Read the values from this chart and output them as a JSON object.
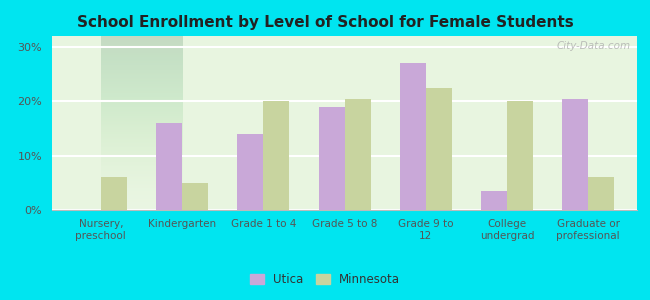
{
  "title": "School Enrollment by Level of School for Female Students",
  "categories": [
    "Nursery,\npreschool",
    "Kindergarten",
    "Grade 1 to 4",
    "Grade 5 to 8",
    "Grade 9 to\n12",
    "College\nundergrad",
    "Graduate or\nprofessional"
  ],
  "utica": [
    0.0,
    16.0,
    14.0,
    19.0,
    27.0,
    3.5,
    20.5
  ],
  "minnesota": [
    6.0,
    5.0,
    20.0,
    20.5,
    22.5,
    20.0,
    6.0
  ],
  "utica_color": "#c9a8d8",
  "minnesota_color": "#c8d49f",
  "background_outer": "#00e5f0",
  "background_inner_top": "#d0eed8",
  "background_inner_bottom": "#f8fff8",
  "yticks": [
    0,
    10,
    20,
    30
  ],
  "ylabels": [
    "0%",
    "10%",
    "20%",
    "30%"
  ],
  "ylim": [
    0,
    32
  ],
  "legend_utica": "Utica",
  "legend_minnesota": "Minnesota",
  "title_fontsize": 11,
  "watermark": "City-Data.com",
  "bar_width": 0.32
}
